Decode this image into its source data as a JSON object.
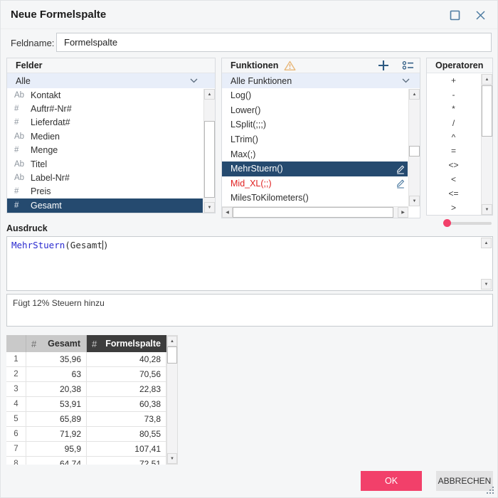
{
  "dialog": {
    "title": "Neue Formelspalte"
  },
  "field_name": {
    "label": "Feldname:",
    "value": "Formelspalte"
  },
  "felder": {
    "title": "Felder",
    "filter_value": "Alle",
    "items": [
      {
        "type": "Ab",
        "label": "Kontakt",
        "selected": false
      },
      {
        "type": "#",
        "label": "Auftr#-Nr#",
        "selected": false
      },
      {
        "type": "#",
        "label": "Lieferdat#",
        "selected": false
      },
      {
        "type": "Ab",
        "label": "Medien",
        "selected": false
      },
      {
        "type": "#",
        "label": "Menge",
        "selected": false
      },
      {
        "type": "Ab",
        "label": "Titel",
        "selected": false
      },
      {
        "type": "Ab",
        "label": "Label-Nr#",
        "selected": false
      },
      {
        "type": "#",
        "label": "Preis",
        "selected": false
      },
      {
        "type": "#",
        "label": "Gesamt",
        "selected": true
      }
    ]
  },
  "funktionen": {
    "title": "Funktionen",
    "filter_value": "Alle Funktionen",
    "items": [
      {
        "label": "Log()",
        "selected": false,
        "red": false,
        "editable": false
      },
      {
        "label": "Lower()",
        "selected": false,
        "red": false,
        "editable": false
      },
      {
        "label": "LSplit(;;;)",
        "selected": false,
        "red": false,
        "editable": false
      },
      {
        "label": "LTrim()",
        "selected": false,
        "red": false,
        "editable": false
      },
      {
        "label": "Max(;)",
        "selected": false,
        "red": false,
        "editable": false
      },
      {
        "label": "MehrStuern()",
        "selected": true,
        "red": false,
        "editable": true
      },
      {
        "label": "Mid_XL(;;)",
        "selected": false,
        "red": true,
        "editable": true
      },
      {
        "label": "MilesToKilometers()",
        "selected": false,
        "red": false,
        "editable": false
      }
    ]
  },
  "operatoren": {
    "title": "Operatoren",
    "items": [
      "+",
      "-",
      "*",
      "/",
      "^",
      "=",
      "<>",
      "<",
      "<=",
      ">"
    ]
  },
  "ausdruck": {
    "label": "Ausdruck",
    "code_function": "MehrStuern",
    "code_before_caret": "(Gesamt",
    "code_after_caret": ")",
    "description": "Fügt 12% Steuern hinzu"
  },
  "table": {
    "hash_glyph": "#",
    "col1_header": "Gesamt",
    "col2_header": "Formelspalte",
    "rows": [
      {
        "n": "1",
        "gesamt": "35,96",
        "formelspalte": "40,28"
      },
      {
        "n": "2",
        "gesamt": "63",
        "formelspalte": "70,56"
      },
      {
        "n": "3",
        "gesamt": "20,38",
        "formelspalte": "22,83"
      },
      {
        "n": "4",
        "gesamt": "53,91",
        "formelspalte": "60,38"
      },
      {
        "n": "5",
        "gesamt": "65,89",
        "formelspalte": "73,8"
      },
      {
        "n": "6",
        "gesamt": "71,92",
        "formelspalte": "80,55"
      },
      {
        "n": "7",
        "gesamt": "95,9",
        "formelspalte": "107,41"
      },
      {
        "n": "8",
        "gesamt": "64,74",
        "formelspalte": "72,51"
      }
    ]
  },
  "buttons": {
    "ok": "OK",
    "cancel": "ABBRECHEN"
  },
  "icons": {
    "up": "▲",
    "down": "▼",
    "left": "◀",
    "right": "▶"
  },
  "colors": {
    "accent_pink": "#f2406a",
    "selection_navy": "#254a6f",
    "icon_steel": "#4d7ba1",
    "icon_navy": "#2d5a82",
    "warning_orange": "#e8b879",
    "fn_red": "#e01f1f",
    "code_blue": "#2b2bd0"
  }
}
